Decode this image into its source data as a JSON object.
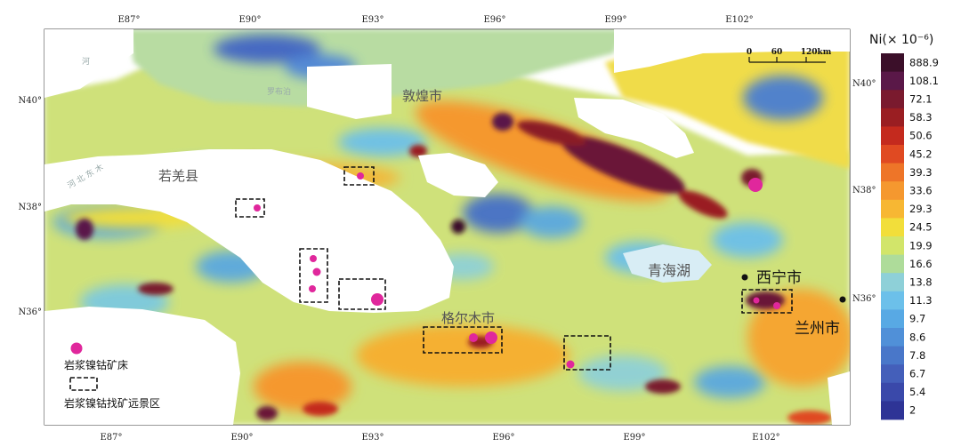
{
  "map": {
    "top_lon_labels": [
      "E87°",
      "E90°",
      "E93°",
      "E96°",
      "E99°",
      "E102°"
    ],
    "bottom_lon_labels": [
      "E87°",
      "E90°",
      "E93°",
      "E96°",
      "E99°",
      "E102°"
    ],
    "left_lat_labels": [
      "N40°",
      "N38°",
      "N36°"
    ],
    "right_lat_labels": [
      "N40°",
      "N38°",
      "N36°"
    ],
    "places": {
      "dunhuang": "敦煌市",
      "ruoqiang": "若羌县",
      "golmud": "格尔木市",
      "qinghai_lake": "青海湖",
      "xining": "西宁市",
      "lanzhou": "兰州市"
    },
    "faint_labels": [
      "河",
      "罗布泊",
      "河  北  东  木"
    ],
    "scale_bar": {
      "ticks": [
        "0",
        "60",
        "120km"
      ]
    }
  },
  "colorbar": {
    "title": "Ni(× 10⁻⁶)",
    "labels": [
      "888.9",
      "108.1",
      "72.1",
      "58.3",
      "50.6",
      "45.2",
      "39.3",
      "33.6",
      "29.3",
      "24.5",
      "19.9",
      "16.6",
      "13.8",
      "11.3",
      "9.7",
      "8.6",
      "7.8",
      "6.7",
      "5.4",
      "2"
    ],
    "colors": [
      "#3b0f29",
      "#5a1848",
      "#7a1a2e",
      "#9a1e22",
      "#c42a1e",
      "#e04a22",
      "#ee7528",
      "#f5982f",
      "#f7b733",
      "#f2de3a",
      "#d2e56a",
      "#aedc9a",
      "#8ed0d8",
      "#6cc0ea",
      "#58a9e4",
      "#5090d8",
      "#4977c9",
      "#445fba",
      "#3a49aa",
      "#2e3496"
    ]
  },
  "legend": {
    "deposit_label": "岩浆镍钴矿床",
    "prospect_label": "岩浆镍钴找矿远景区"
  }
}
